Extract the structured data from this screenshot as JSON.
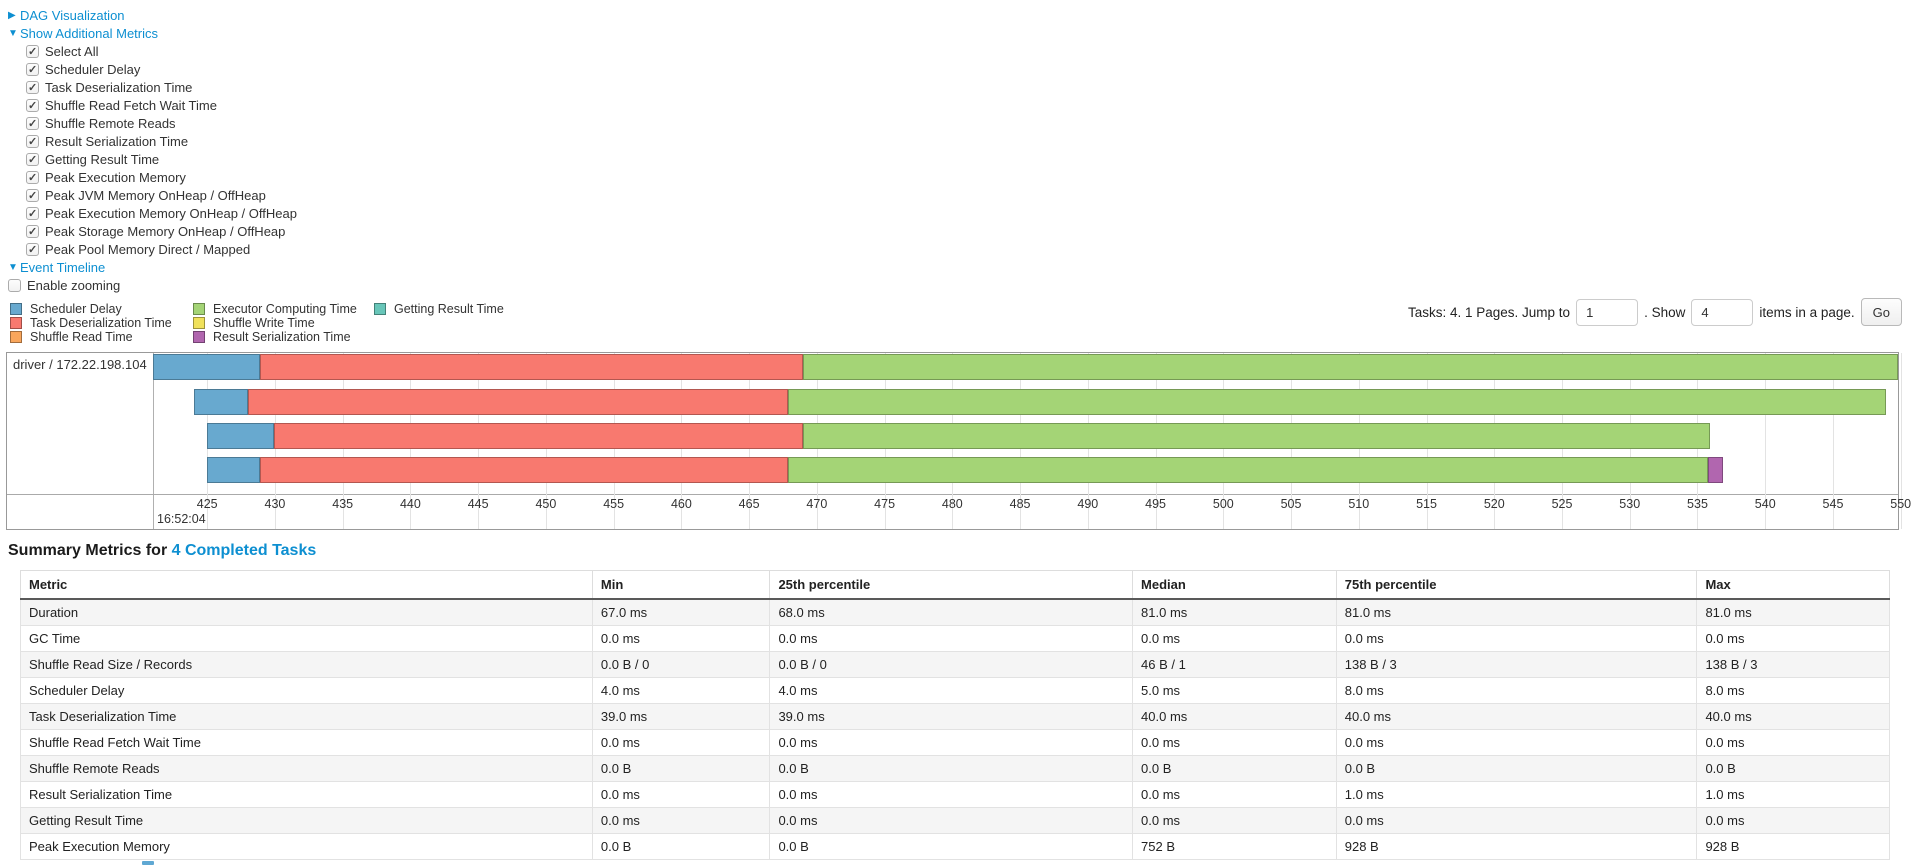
{
  "links": {
    "dag": "DAG Visualization",
    "metrics": "Show Additional Metrics",
    "timeline": "Event Timeline"
  },
  "controls": {
    "metric_checkboxes": [
      "Select All",
      "Scheduler Delay",
      "Task Deserialization Time",
      "Shuffle Read Fetch Wait Time",
      "Shuffle Remote Reads",
      "Result Serialization Time",
      "Getting Result Time",
      "Peak Execution Memory",
      "Peak JVM Memory OnHeap / OffHeap",
      "Peak Execution Memory OnHeap / OffHeap",
      "Peak Storage Memory OnHeap / OffHeap",
      "Peak Pool Memory Direct / Mapped"
    ],
    "enable_zooming": "Enable zooming"
  },
  "colors": {
    "scheduler_delay": "#68a9cf",
    "task_deserialization": "#f8796f",
    "shuffle_read": "#f9a65c",
    "executor_computing": "#a4d476",
    "shuffle_write": "#f0e15b",
    "result_serialization": "#b166af",
    "getting_result": "#68c6b9",
    "link": "#0d8fd1"
  },
  "legend": [
    {
      "key": "scheduler_delay",
      "label": "Scheduler Delay"
    },
    {
      "key": "task_deserialization",
      "label": "Task Deserialization Time"
    },
    {
      "key": "shuffle_read",
      "label": "Shuffle Read Time"
    },
    {
      "key": "executor_computing",
      "label": "Executor Computing Time"
    },
    {
      "key": "shuffle_write",
      "label": "Shuffle Write Time"
    },
    {
      "key": "result_serialization",
      "label": "Result Serialization Time"
    },
    {
      "key": "getting_result",
      "label": "Getting Result Time"
    }
  ],
  "pagination": {
    "prefix": "Tasks: 4. 1 Pages. Jump to",
    "jump_value": "1",
    "show_label": ". Show",
    "show_value": "4",
    "suffix": "items in a page.",
    "go": "Go"
  },
  "timeline": {
    "type": "gantt",
    "row_label": "driver / 172.22.198.104",
    "axis_start_label": "16:52:04",
    "domain_ms": {
      "min": 421,
      "max": 549.8
    },
    "ticks_ms": [
      425,
      430,
      435,
      440,
      445,
      450,
      455,
      460,
      465,
      470,
      475,
      480,
      485,
      490,
      495,
      500,
      505,
      510,
      515,
      520,
      525,
      530,
      535,
      540,
      545,
      550
    ],
    "tasks": [
      {
        "segments": [
          {
            "type": "scheduler_delay",
            "start": 421.0,
            "end": 428.9
          },
          {
            "type": "task_deserialization",
            "start": 428.9,
            "end": 469.0
          },
          {
            "type": "executor_computing",
            "start": 469.0,
            "end": 549.8
          }
        ]
      },
      {
        "segments": [
          {
            "type": "scheduler_delay",
            "start": 424.0,
            "end": 428.0
          },
          {
            "type": "task_deserialization",
            "start": 428.0,
            "end": 467.9
          },
          {
            "type": "executor_computing",
            "start": 467.9,
            "end": 548.9
          }
        ]
      },
      {
        "segments": [
          {
            "type": "scheduler_delay",
            "start": 425.0,
            "end": 429.9
          },
          {
            "type": "task_deserialization",
            "start": 429.9,
            "end": 469.0
          },
          {
            "type": "executor_computing",
            "start": 469.0,
            "end": 535.9
          }
        ]
      },
      {
        "segments": [
          {
            "type": "scheduler_delay",
            "start": 425.0,
            "end": 428.9
          },
          {
            "type": "task_deserialization",
            "start": 428.9,
            "end": 467.9
          },
          {
            "type": "executor_computing",
            "start": 467.9,
            "end": 535.8
          },
          {
            "type": "result_serialization",
            "start": 535.8,
            "end": 536.9
          }
        ]
      }
    ]
  },
  "summary": {
    "title_prefix": "Summary Metrics for ",
    "title_link": "4 Completed Tasks",
    "headers": [
      "Metric",
      "Min",
      "25th percentile",
      "Median",
      "75th percentile",
      "Max"
    ],
    "col_widths_pct": [
      30.6,
      9.5,
      19.4,
      10.9,
      19.3,
      10.3
    ],
    "rows": [
      [
        "Duration",
        "67.0 ms",
        "68.0 ms",
        "81.0 ms",
        "81.0 ms",
        "81.0 ms"
      ],
      [
        "GC Time",
        "0.0 ms",
        "0.0 ms",
        "0.0 ms",
        "0.0 ms",
        "0.0 ms"
      ],
      [
        "Shuffle Read Size / Records",
        "0.0 B / 0",
        "0.0 B / 0",
        "46 B / 1",
        "138 B / 3",
        "138 B / 3"
      ],
      [
        "Scheduler Delay",
        "4.0 ms",
        "4.0 ms",
        "5.0 ms",
        "8.0 ms",
        "8.0 ms"
      ],
      [
        "Task Deserialization Time",
        "39.0 ms",
        "39.0 ms",
        "40.0 ms",
        "40.0 ms",
        "40.0 ms"
      ],
      [
        "Shuffle Read Fetch Wait Time",
        "0.0 ms",
        "0.0 ms",
        "0.0 ms",
        "0.0 ms",
        "0.0 ms"
      ],
      [
        "Shuffle Remote Reads",
        "0.0 B",
        "0.0 B",
        "0.0 B",
        "0.0 B",
        "0.0 B"
      ],
      [
        "Result Serialization Time",
        "0.0 ms",
        "0.0 ms",
        "0.0 ms",
        "1.0 ms",
        "1.0 ms"
      ],
      [
        "Getting Result Time",
        "0.0 ms",
        "0.0 ms",
        "0.0 ms",
        "0.0 ms",
        "0.0 ms"
      ],
      [
        "Peak Execution Memory",
        "0.0 B",
        "0.0 B",
        "752 B",
        "928 B",
        "928 B"
      ]
    ]
  }
}
